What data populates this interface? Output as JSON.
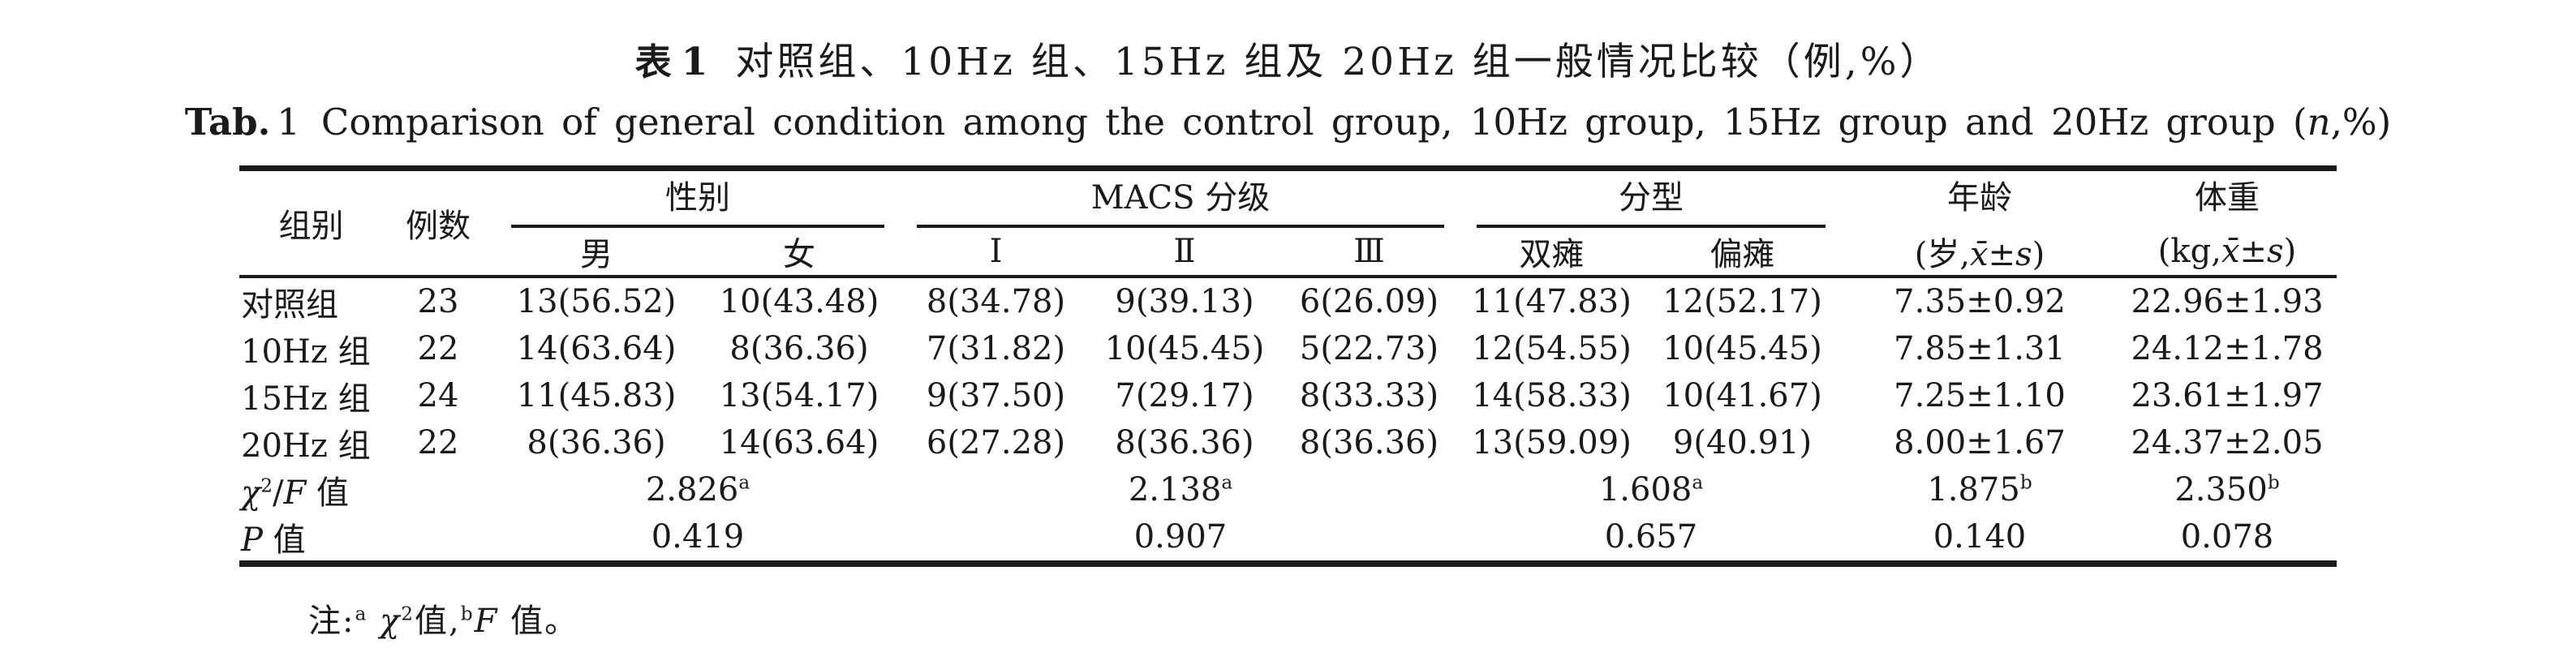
{
  "page": {
    "background": "#ffffff",
    "text_color": "#1a1a1a",
    "rule_color": "#1b1b1b"
  },
  "titles": {
    "zh_label": "表",
    "zh_label_num": "1",
    "zh_text": "对照组、10Hz 组、15Hz 组及 20Hz 组一般情况比较（例,%）",
    "en_label": "Tab.",
    "en_label_num": "1",
    "en_rich": [
      {
        "t": "Comparison of general condition among the control group, 10Hz group, 15Hz group and 20Hz group ("
      },
      {
        "t": "n",
        "s": "i"
      },
      {
        "t": ",%)"
      }
    ]
  },
  "table": {
    "header": {
      "group": "组别",
      "cases": "例数",
      "sex": {
        "label": "性别",
        "male": "男",
        "female": "女"
      },
      "macs": {
        "label": "MACS 分级",
        "g1": "Ⅰ",
        "g2": "Ⅱ",
        "g3": "Ⅲ"
      },
      "type": {
        "label": "分型",
        "di": "双瘫",
        "hemi": "偏瘫"
      },
      "age": {
        "label": "年龄",
        "sub": [
          {
            "t": "(岁,"
          },
          {
            "t": "x̄",
            "s": "i"
          },
          {
            "t": "±"
          },
          {
            "t": "s",
            "s": "i"
          },
          {
            "t": ")"
          }
        ]
      },
      "weight": {
        "label": "体重",
        "sub": [
          {
            "t": "(kg,"
          },
          {
            "t": "x̄",
            "s": "i"
          },
          {
            "t": "±"
          },
          {
            "t": "s",
            "s": "i"
          },
          {
            "t": ")"
          }
        ]
      }
    },
    "rows": [
      {
        "group": "对照组",
        "n": "23",
        "male": "13(56.52)",
        "female": "10(43.48)",
        "m1": "8(34.78)",
        "m2": "9(39.13)",
        "m3": "6(26.09)",
        "di": "11(47.83)",
        "hemi": "12(52.17)",
        "age": "7.35±0.92",
        "weight": "22.96±1.93"
      },
      {
        "group": "10Hz 组",
        "n": "22",
        "male": "14(63.64)",
        "female": "8(36.36)",
        "m1": "7(31.82)",
        "m2": "10(45.45)",
        "m3": "5(22.73)",
        "di": "12(54.55)",
        "hemi": "10(45.45)",
        "age": "7.85±1.31",
        "weight": "24.12±1.78"
      },
      {
        "group": "15Hz 组",
        "n": "24",
        "male": "11(45.83)",
        "female": "13(54.17)",
        "m1": "9(37.50)",
        "m2": "7(29.17)",
        "m3": "8(33.33)",
        "di": "14(58.33)",
        "hemi": "10(41.67)",
        "age": "7.25±1.10",
        "weight": "23.61±1.97"
      },
      {
        "group": "20Hz 组",
        "n": "22",
        "male": "8(36.36)",
        "female": "14(63.64)",
        "m1": "6(27.28)",
        "m2": "8(36.36)",
        "m3": "8(36.36)",
        "di": "13(59.09)",
        "hemi": "9(40.91)",
        "age": "8.00±1.67",
        "weight": "24.37±2.05"
      }
    ],
    "stat_rows": [
      {
        "label": [
          {
            "t": "χ",
            "s": "i"
          },
          {
            "t": "2",
            "s": "sup"
          },
          {
            "t": "/"
          },
          {
            "t": "F",
            "s": "i"
          },
          {
            "t": " 值"
          }
        ],
        "n": "",
        "sex": [
          {
            "t": "2.826"
          },
          {
            "t": "a",
            "s": "sup"
          }
        ],
        "macs": [
          {
            "t": "2.138"
          },
          {
            "t": "a",
            "s": "sup"
          }
        ],
        "type": [
          {
            "t": "1.608"
          },
          {
            "t": "a",
            "s": "sup"
          }
        ],
        "age": [
          {
            "t": "1.875"
          },
          {
            "t": "b",
            "s": "sup"
          }
        ],
        "weight": [
          {
            "t": "2.350"
          },
          {
            "t": "b",
            "s": "sup"
          }
        ]
      },
      {
        "label": [
          {
            "t": "P",
            "s": "i"
          },
          {
            "t": " 值"
          }
        ],
        "n": "",
        "sex": [
          {
            "t": "0.419"
          }
        ],
        "macs": [
          {
            "t": "0.907"
          }
        ],
        "type": [
          {
            "t": "0.657"
          }
        ],
        "age": [
          {
            "t": "0.140"
          }
        ],
        "weight": [
          {
            "t": "0.078"
          }
        ]
      }
    ]
  },
  "footnote": [
    {
      "t": "注:"
    },
    {
      "t": "a",
      "s": "sup"
    },
    {
      "t": " "
    },
    {
      "t": "χ",
      "s": "i"
    },
    {
      "t": "2",
      "s": "sup"
    },
    {
      "t": "值,"
    },
    {
      "t": "b",
      "s": "sup"
    },
    {
      "t": "F",
      "s": "i"
    },
    {
      "t": " 值。"
    }
  ]
}
